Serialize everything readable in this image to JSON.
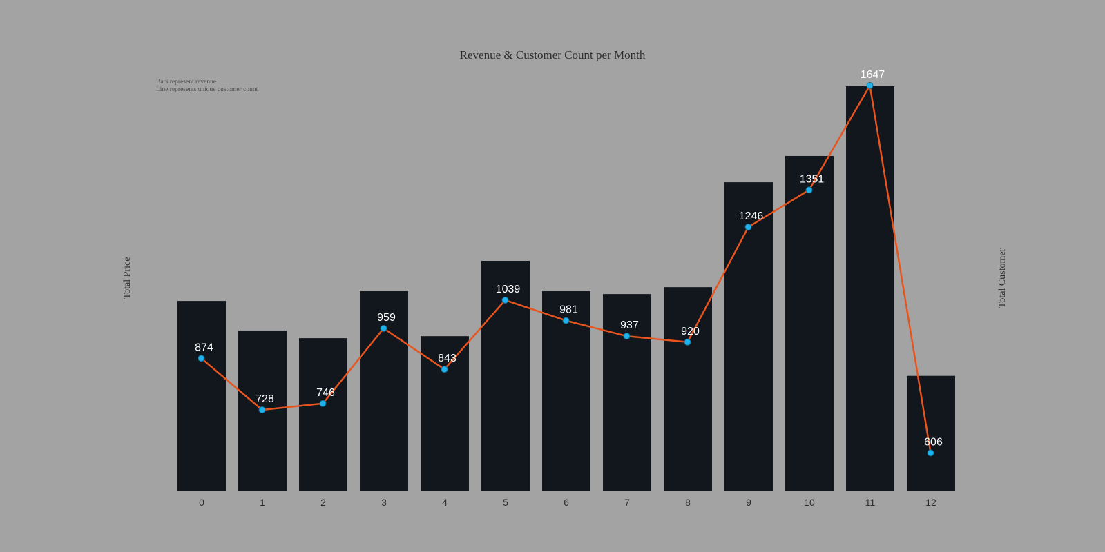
{
  "chart_data": {
    "type": "bar",
    "title": "Revenue & Customer Count per Month",
    "notes": [
      "Bars represent revenue",
      "Line represents unique customer count"
    ],
    "ylabel_left": "Total Price",
    "ylabel_right": "Total Customer",
    "xlabel": "",
    "categories": [
      "0",
      "1",
      "2",
      "3",
      "4",
      "5",
      "6",
      "7",
      "8",
      "9",
      "10",
      "11",
      "12"
    ],
    "bar_series": {
      "name": "revenue",
      "values": [
        47.0,
        39.7,
        37.8,
        49.4,
        38.3,
        56.9,
        49.4,
        48.7,
        50.4,
        76.3,
        82.8,
        100.0,
        28.5
      ]
    },
    "line_series": {
      "name": "unique customer count",
      "values": [
        874,
        728,
        746,
        959,
        843,
        1039,
        981,
        937,
        920,
        1246,
        1351,
        1647,
        606
      ]
    },
    "bar_ylim": [
      0,
      100
    ],
    "line_ylim": [
      552,
      1647
    ],
    "grid": false,
    "colors": {
      "background": "#a3a3a3",
      "bar": "#12161d",
      "line": "#e8541e",
      "marker": "#1fb3ee",
      "label": "#ffffff",
      "tick": "#2e2e2e"
    }
  }
}
